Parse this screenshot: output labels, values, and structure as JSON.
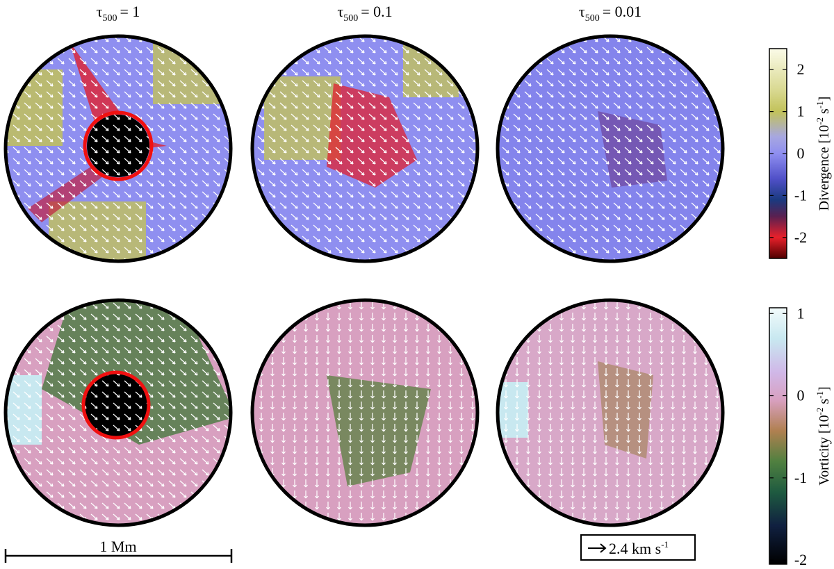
{
  "panels": [
    {
      "symbol": "τ",
      "subscript": "500",
      "value": "= 1"
    },
    {
      "symbol": "τ",
      "subscript": "500",
      "value": "= 0.1"
    },
    {
      "symbol": "τ",
      "subscript": "500",
      "value": "= 0.01"
    }
  ],
  "colorbars": [
    {
      "label": "Divergence [10",
      "exp1": "-2",
      "unit": " s",
      "exp2": "-1",
      "close": "]",
      "ylim": [
        -2.5,
        2.5
      ],
      "yticks": [
        {
          "value": -2,
          "label": "-2"
        },
        {
          "value": -1,
          "label": "-1"
        },
        0,
        1,
        2
      ]
    },
    {
      "label": "Vorticity [10",
      "exp1": "-2",
      "unit": " s",
      "exp2": "-1",
      "close": "]",
      "ylim": [
        -2.05,
        1.07
      ],
      "yticks": [
        {
          "value": -2,
          "label": "-2"
        },
        {
          "value": -1,
          "label": "-1"
        },
        0,
        1
      ]
    }
  ],
  "scale_bar": "1 Mm",
  "vector_key": {
    "text": "2.4 km s",
    "exp": "-1"
  }
}
